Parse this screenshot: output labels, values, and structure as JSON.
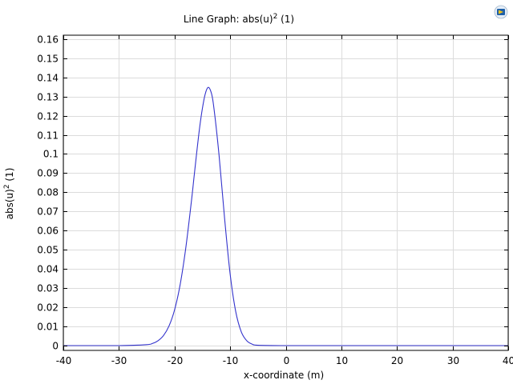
{
  "app": {
    "logo_icon": "comsol-logo-icon"
  },
  "chart_data": {
    "type": "line",
    "title": "Line Graph: abs(u)",
    "title_superscript": "2",
    "title_suffix": " (1)",
    "xlabel": "x-coordinate (m)",
    "ylabel": "abs(u)",
    "ylabel_superscript": "2",
    "ylabel_suffix": " (1)",
    "xlim": [
      -40,
      40
    ],
    "ylim": [
      -0.0025,
      0.162
    ],
    "grid": true,
    "x_ticks": [
      -40,
      -30,
      -20,
      -10,
      0,
      10,
      20,
      30,
      40
    ],
    "x_tick_labels": [
      "-40",
      "-30",
      "-20",
      "-10",
      "0",
      "10",
      "20",
      "30",
      "40"
    ],
    "y_ticks": [
      0,
      0.01,
      0.02,
      0.03,
      0.04,
      0.05,
      0.06,
      0.07,
      0.08,
      0.09,
      0.1,
      0.11,
      0.12,
      0.13,
      0.14,
      0.15,
      0.16
    ],
    "y_tick_labels": [
      "0",
      "0.01",
      "0.02",
      "0.03",
      "0.04",
      "0.05",
      "0.06",
      "0.07",
      "0.08",
      "0.09",
      "0.1",
      "0.11",
      "0.12",
      "0.13",
      "0.14",
      "0.15",
      "0.16"
    ],
    "series": [
      {
        "color": "#3333cc",
        "x": [
          -40,
          -30,
          -25,
          -24,
          -23,
          -22,
          -21,
          -20,
          -19,
          -18,
          -17,
          -16.5,
          -16,
          -15.5,
          -15,
          -14.5,
          -14,
          -13.5,
          -13,
          -12,
          -11,
          -10,
          -9,
          -8,
          -7,
          -6,
          -5,
          0,
          10,
          20,
          30,
          40
        ],
        "y": [
          0,
          0,
          0.0005,
          0.0011,
          0.0025,
          0.0052,
          0.0102,
          0.0186,
          0.0317,
          0.0505,
          0.0745,
          0.0878,
          0.1011,
          0.1135,
          0.1236,
          0.1311,
          0.1347,
          0.1329,
          0.1258,
          0.0995,
          0.0664,
          0.0373,
          0.0178,
          0.0072,
          0.0025,
          0.0007,
          0.0002,
          0,
          0,
          0,
          0,
          0
        ]
      }
    ]
  }
}
